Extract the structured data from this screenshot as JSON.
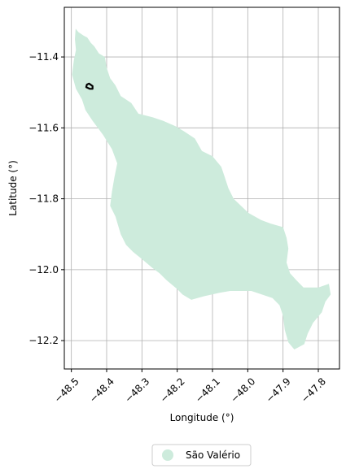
{
  "chart_data": {
    "type": "map",
    "xlabel": "Longitude (°)",
    "ylabel": "Latitude (°)",
    "xlim": [
      -48.52,
      -47.74
    ],
    "ylim": [
      -12.28,
      -11.26
    ],
    "x_ticks": [
      -48.5,
      -48.4,
      -48.3,
      -48.2,
      -48.1,
      -48.0,
      -47.9,
      -47.8
    ],
    "x_tick_labels": [
      "−48.5",
      "−48.4",
      "−48.3",
      "−48.2",
      "−48.1",
      "−48.0",
      "−47.9",
      "−47.8"
    ],
    "y_ticks": [
      -11.4,
      -11.6,
      -11.8,
      -12.0,
      -12.2
    ],
    "y_tick_labels": [
      "−11.4",
      "−11.6",
      "−11.8",
      "−12.0",
      "−12.2"
    ],
    "grid": true,
    "legend_position": "bottom-center",
    "region_color": "#cdebdc",
    "marker_color": "#000000",
    "legend": {
      "entries": [
        {
          "label": "São Valério",
          "color": "#cdebdc"
        }
      ]
    },
    "region": {
      "name": "São Valério",
      "coordinates": [
        [
          -48.488,
          -11.32
        ],
        [
          -48.48,
          -11.33
        ],
        [
          -48.465,
          -11.34
        ],
        [
          -48.455,
          -11.345
        ],
        [
          -48.445,
          -11.36
        ],
        [
          -48.435,
          -11.37
        ],
        [
          -48.422,
          -11.39
        ],
        [
          -48.405,
          -11.4
        ],
        [
          -48.4,
          -11.43
        ],
        [
          -48.39,
          -11.46
        ],
        [
          -48.375,
          -11.48
        ],
        [
          -48.36,
          -11.51
        ],
        [
          -48.33,
          -11.53
        ],
        [
          -48.31,
          -11.56
        ],
        [
          -48.27,
          -11.57
        ],
        [
          -48.24,
          -11.58
        ],
        [
          -48.205,
          -11.595
        ],
        [
          -48.18,
          -11.61
        ],
        [
          -48.15,
          -11.63
        ],
        [
          -48.13,
          -11.665
        ],
        [
          -48.1,
          -11.68
        ],
        [
          -48.075,
          -11.71
        ],
        [
          -48.065,
          -11.74
        ],
        [
          -48.055,
          -11.77
        ],
        [
          -48.04,
          -11.8
        ],
        [
          -47.998,
          -11.84
        ],
        [
          -47.962,
          -11.86
        ],
        [
          -47.935,
          -11.87
        ],
        [
          -47.9,
          -11.88
        ],
        [
          -47.89,
          -11.91
        ],
        [
          -47.885,
          -11.94
        ],
        [
          -47.89,
          -11.98
        ],
        [
          -47.88,
          -12.01
        ],
        [
          -47.862,
          -12.03
        ],
        [
          -47.842,
          -12.05
        ],
        [
          -47.8,
          -12.05
        ],
        [
          -47.77,
          -12.04
        ],
        [
          -47.765,
          -12.07
        ],
        [
          -47.78,
          -12.09
        ],
        [
          -47.79,
          -12.12
        ],
        [
          -47.815,
          -12.15
        ],
        [
          -47.83,
          -12.18
        ],
        [
          -47.84,
          -12.21
        ],
        [
          -47.868,
          -12.225
        ],
        [
          -47.885,
          -12.205
        ],
        [
          -47.895,
          -12.17
        ],
        [
          -47.9,
          -12.13
        ],
        [
          -47.91,
          -12.1
        ],
        [
          -47.93,
          -12.08
        ],
        [
          -47.99,
          -12.06
        ],
        [
          -48.05,
          -12.06
        ],
        [
          -48.08,
          -12.065
        ],
        [
          -48.125,
          -12.075
        ],
        [
          -48.16,
          -12.085
        ],
        [
          -48.185,
          -12.07
        ],
        [
          -48.2,
          -12.055
        ],
        [
          -48.23,
          -12.03
        ],
        [
          -48.25,
          -12.01
        ],
        [
          -48.27,
          -11.995
        ],
        [
          -48.3,
          -11.97
        ],
        [
          -48.325,
          -11.95
        ],
        [
          -48.345,
          -11.93
        ],
        [
          -48.36,
          -11.9
        ],
        [
          -48.375,
          -11.85
        ],
        [
          -48.39,
          -11.82
        ],
        [
          -48.385,
          -11.78
        ],
        [
          -48.378,
          -11.74
        ],
        [
          -48.37,
          -11.7
        ],
        [
          -48.385,
          -11.66
        ],
        [
          -48.41,
          -11.62
        ],
        [
          -48.44,
          -11.58
        ],
        [
          -48.46,
          -11.55
        ],
        [
          -48.47,
          -11.52
        ],
        [
          -48.487,
          -11.49
        ],
        [
          -48.498,
          -11.45
        ],
        [
          -48.493,
          -11.41
        ],
        [
          -48.487,
          -11.38
        ],
        [
          -48.49,
          -11.35
        ],
        [
          -48.488,
          -11.32
        ]
      ]
    },
    "marker": {
      "coordinates": [
        [
          -48.45,
          -11.475
        ],
        [
          -48.44,
          -11.482
        ],
        [
          -48.44,
          -11.49
        ],
        [
          -48.448,
          -11.49
        ],
        [
          -48.458,
          -11.485
        ],
        [
          -48.456,
          -11.478
        ],
        [
          -48.45,
          -11.475
        ]
      ]
    }
  }
}
